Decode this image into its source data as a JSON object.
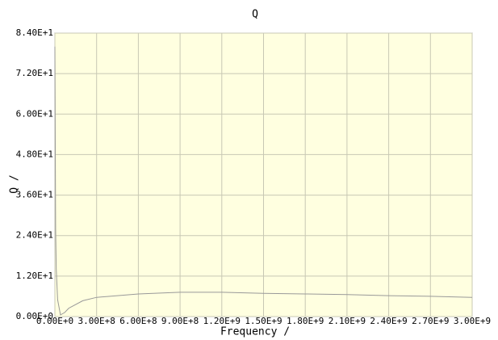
{
  "chart_data": {
    "type": "line",
    "title": "Q",
    "x_label": "Frequency /",
    "y_label": "Q /",
    "x": [
      0,
      5000000,
      10000000,
      20000000,
      40000000,
      70000000,
      100000000,
      200000000,
      300000000,
      600000000,
      900000000,
      1200000000,
      1500000000,
      1800000000,
      2100000000,
      2400000000,
      2700000000,
      3000000000
    ],
    "series": [
      {
        "name": "Q",
        "color": "#999999",
        "values": [
          80,
          26,
          14,
          5,
          0.5,
          1.2,
          2.5,
          4.7,
          5.7,
          6.7,
          7.2,
          7.2,
          6.9,
          6.7,
          6.5,
          6.2,
          6.0,
          5.7
        ]
      }
    ],
    "xlim": [
      0,
      3000000000
    ],
    "xticks": [
      {
        "value": 0,
        "label": "0.00E+0"
      },
      {
        "value": 300000000,
        "label": "3.00E+8"
      },
      {
        "value": 600000000,
        "label": "6.00E+8"
      },
      {
        "value": 900000000,
        "label": "9.00E+8"
      },
      {
        "value": 1200000000,
        "label": "1.20E+9"
      },
      {
        "value": 1500000000,
        "label": "1.50E+9"
      },
      {
        "value": 1800000000,
        "label": "1.80E+9"
      },
      {
        "value": 2100000000,
        "label": "2.10E+9"
      },
      {
        "value": 2400000000,
        "label": "2.40E+9"
      },
      {
        "value": 2700000000,
        "label": "2.70E+9"
      },
      {
        "value": 3000000000,
        "label": "3.00E+9"
      }
    ],
    "ylim": [
      0,
      84
    ],
    "yticks": [
      {
        "value": 0,
        "label": "0.00E+0"
      },
      {
        "value": 12,
        "label": "1.20E+1"
      },
      {
        "value": 24,
        "label": "2.40E+1"
      },
      {
        "value": 36,
        "label": "3.60E+1"
      },
      {
        "value": 48,
        "label": "4.80E+1"
      },
      {
        "value": 60,
        "label": "6.00E+1"
      },
      {
        "value": 72,
        "label": "7.20E+1"
      },
      {
        "value": 84,
        "label": "8.40E+1"
      }
    ],
    "grid": true,
    "background": "#ffffe0"
  }
}
